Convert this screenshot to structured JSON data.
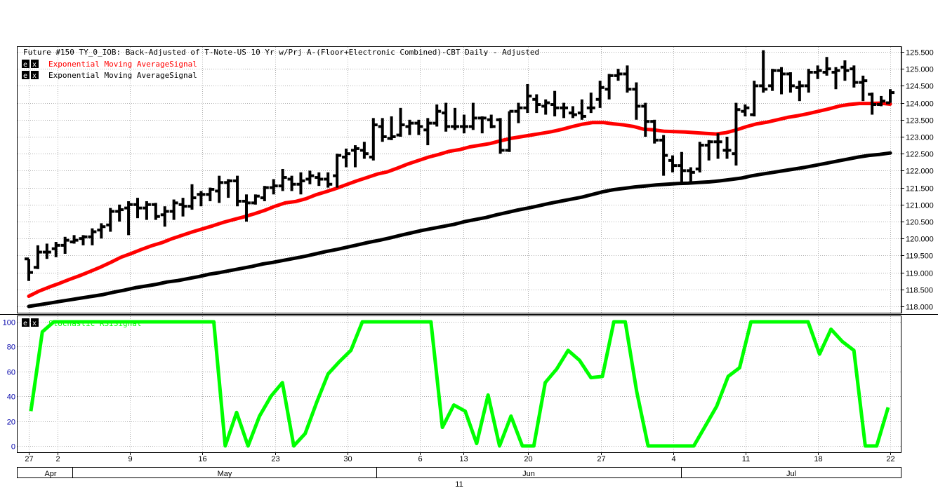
{
  "header": {
    "title": "Future #150 TY_0_IOB: Back-Adjusted of T-Note-US 10 Yr w/Prj A-(Floor+Electronic Combined)-CBT Daily -  Adjusted",
    "legend": [
      {
        "e": "e",
        "x": "x",
        "label": "Exponential Moving AverageSignal",
        "color": "#ff0000"
      },
      {
        "e": "e",
        "x": "x",
        "label": "Exponential Moving AverageSignal",
        "color": "#000000"
      }
    ],
    "lower_legend": {
      "e": "e",
      "x": "x",
      "label": "Stochastic RSISignal",
      "color": "#00ff00"
    }
  },
  "colors": {
    "bars": "#000000",
    "ema_fast": "#ff0000",
    "ema_slow": "#000000",
    "stoch": "#00ff00",
    "grid": "#b0b0b0",
    "axis_text_lower": "#0000aa"
  },
  "chart_data": [
    {
      "type": "ohlc",
      "ylim": [
        117.8,
        125.6
      ],
      "yticks": [
        "125.500",
        "125.000",
        "124.500",
        "124.000",
        "123.500",
        "123.000",
        "122.500",
        "122.000",
        "121.500",
        "121.000",
        "120.500",
        "120.000",
        "119.500",
        "119.000",
        "118.500",
        "118.000"
      ],
      "grid": true,
      "bars": [
        {
          "o": 119.4,
          "h": 119.4,
          "l": 118.75,
          "c": 119.0
        },
        {
          "o": 119.15,
          "h": 119.8,
          "l": 119.1,
          "c": 119.6
        },
        {
          "o": 119.6,
          "h": 119.85,
          "l": 119.4,
          "c": 119.6
        },
        {
          "o": 119.7,
          "h": 119.9,
          "l": 119.45,
          "c": 119.8
        },
        {
          "o": 119.8,
          "h": 120.05,
          "l": 119.55,
          "c": 119.95
        },
        {
          "o": 119.9,
          "h": 120.1,
          "l": 119.85,
          "c": 119.95
        },
        {
          "o": 120.0,
          "h": 120.1,
          "l": 119.8,
          "c": 120.05
        },
        {
          "o": 120.05,
          "h": 120.3,
          "l": 119.8,
          "c": 120.2
        },
        {
          "o": 120.25,
          "h": 120.45,
          "l": 120.0,
          "c": 120.35
        },
        {
          "o": 120.4,
          "h": 120.9,
          "l": 120.2,
          "c": 120.8
        },
        {
          "o": 120.8,
          "h": 121.0,
          "l": 120.5,
          "c": 120.85
        },
        {
          "o": 120.9,
          "h": 121.1,
          "l": 120.1,
          "c": 121.0
        },
        {
          "o": 121.0,
          "h": 121.2,
          "l": 120.6,
          "c": 120.9
        },
        {
          "o": 120.9,
          "h": 121.1,
          "l": 120.55,
          "c": 121.0
        },
        {
          "o": 121.0,
          "h": 121.05,
          "l": 120.55,
          "c": 120.65
        },
        {
          "o": 120.7,
          "h": 120.95,
          "l": 120.35,
          "c": 120.8
        },
        {
          "o": 120.8,
          "h": 121.15,
          "l": 120.55,
          "c": 121.05
        },
        {
          "o": 121.0,
          "h": 121.2,
          "l": 120.65,
          "c": 120.95
        },
        {
          "o": 120.95,
          "h": 121.6,
          "l": 120.85,
          "c": 121.2
        },
        {
          "o": 121.3,
          "h": 121.4,
          "l": 120.95,
          "c": 121.3
        },
        {
          "o": 121.3,
          "h": 121.5,
          "l": 121.1,
          "c": 121.45
        },
        {
          "o": 121.4,
          "h": 121.85,
          "l": 121.05,
          "c": 121.65
        },
        {
          "o": 121.65,
          "h": 121.75,
          "l": 121.2,
          "c": 121.7
        },
        {
          "o": 121.7,
          "h": 121.85,
          "l": 120.95,
          "c": 121.1
        },
        {
          "o": 121.1,
          "h": 121.3,
          "l": 120.5,
          "c": 121.05
        },
        {
          "o": 121.05,
          "h": 121.3,
          "l": 121.0,
          "c": 121.25
        },
        {
          "o": 121.2,
          "h": 121.55,
          "l": 121.1,
          "c": 121.5
        },
        {
          "o": 121.5,
          "h": 121.75,
          "l": 121.3,
          "c": 121.55
        },
        {
          "o": 121.55,
          "h": 122.05,
          "l": 121.4,
          "c": 121.8
        },
        {
          "o": 121.75,
          "h": 121.85,
          "l": 121.4,
          "c": 121.6
        },
        {
          "o": 121.6,
          "h": 121.95,
          "l": 121.3,
          "c": 121.7
        },
        {
          "o": 121.75,
          "h": 122.0,
          "l": 121.6,
          "c": 121.85
        },
        {
          "o": 121.8,
          "h": 121.95,
          "l": 121.55,
          "c": 121.75
        },
        {
          "o": 121.75,
          "h": 121.95,
          "l": 121.5,
          "c": 121.6
        },
        {
          "o": 121.85,
          "h": 122.5,
          "l": 121.5,
          "c": 122.45
        },
        {
          "o": 122.4,
          "h": 122.65,
          "l": 122.1,
          "c": 122.5
        },
        {
          "o": 122.6,
          "h": 122.75,
          "l": 122.1,
          "c": 122.65
        },
        {
          "o": 122.6,
          "h": 122.85,
          "l": 122.35,
          "c": 122.5
        },
        {
          "o": 122.4,
          "h": 123.55,
          "l": 122.3,
          "c": 123.35
        },
        {
          "o": 123.3,
          "h": 123.55,
          "l": 122.85,
          "c": 123.0
        },
        {
          "o": 122.95,
          "h": 123.6,
          "l": 122.9,
          "c": 123.0
        },
        {
          "o": 123.05,
          "h": 123.85,
          "l": 123.0,
          "c": 123.35
        },
        {
          "o": 123.3,
          "h": 123.5,
          "l": 123.05,
          "c": 123.4
        },
        {
          "o": 123.4,
          "h": 123.5,
          "l": 123.05,
          "c": 123.3
        },
        {
          "o": 123.2,
          "h": 123.55,
          "l": 122.75,
          "c": 123.4
        },
        {
          "o": 123.4,
          "h": 123.95,
          "l": 123.3,
          "c": 123.75
        },
        {
          "o": 123.7,
          "h": 124.0,
          "l": 123.15,
          "c": 123.3
        },
        {
          "o": 123.3,
          "h": 123.85,
          "l": 123.2,
          "c": 123.3
        },
        {
          "o": 123.3,
          "h": 123.65,
          "l": 123.1,
          "c": 123.3
        },
        {
          "o": 123.3,
          "h": 124.0,
          "l": 123.2,
          "c": 123.55
        },
        {
          "o": 123.55,
          "h": 123.6,
          "l": 123.1,
          "c": 123.55
        },
        {
          "o": 123.5,
          "h": 123.65,
          "l": 123.25,
          "c": 123.3
        },
        {
          "o": 123.5,
          "h": 123.55,
          "l": 122.5,
          "c": 122.6
        },
        {
          "o": 122.6,
          "h": 123.75,
          "l": 122.55,
          "c": 123.75
        },
        {
          "o": 123.75,
          "h": 124.0,
          "l": 123.4,
          "c": 123.85
        },
        {
          "o": 123.85,
          "h": 124.55,
          "l": 123.7,
          "c": 124.2
        },
        {
          "o": 124.1,
          "h": 124.25,
          "l": 123.7,
          "c": 123.95
        },
        {
          "o": 123.9,
          "h": 124.1,
          "l": 123.65,
          "c": 124.0
        },
        {
          "o": 123.95,
          "h": 124.35,
          "l": 123.6,
          "c": 123.85
        },
        {
          "o": 123.85,
          "h": 124.0,
          "l": 123.55,
          "c": 123.85
        },
        {
          "o": 123.7,
          "h": 123.9,
          "l": 123.55,
          "c": 123.65
        },
        {
          "o": 123.7,
          "h": 124.1,
          "l": 123.5,
          "c": 123.6
        },
        {
          "o": 123.85,
          "h": 124.3,
          "l": 123.7,
          "c": 123.85
        },
        {
          "o": 124.1,
          "h": 124.65,
          "l": 123.85,
          "c": 124.45
        },
        {
          "o": 124.4,
          "h": 124.85,
          "l": 124.1,
          "c": 124.8
        },
        {
          "o": 124.8,
          "h": 125.0,
          "l": 124.65,
          "c": 124.85
        },
        {
          "o": 124.85,
          "h": 125.1,
          "l": 124.3,
          "c": 124.4
        },
        {
          "o": 124.4,
          "h": 124.6,
          "l": 123.5,
          "c": 123.9
        },
        {
          "o": 123.9,
          "h": 124.0,
          "l": 123.0,
          "c": 123.45
        },
        {
          "o": 123.45,
          "h": 123.5,
          "l": 122.8,
          "c": 122.9
        },
        {
          "o": 122.9,
          "h": 123.05,
          "l": 121.85,
          "c": 122.45
        },
        {
          "o": 122.3,
          "h": 122.45,
          "l": 121.95,
          "c": 122.15
        },
        {
          "o": 122.15,
          "h": 122.55,
          "l": 121.6,
          "c": 122.0
        },
        {
          "o": 122.0,
          "h": 122.1,
          "l": 121.6,
          "c": 121.95
        },
        {
          "o": 122.05,
          "h": 122.85,
          "l": 121.95,
          "c": 122.75
        },
        {
          "o": 122.75,
          "h": 122.9,
          "l": 122.3,
          "c": 122.85
        },
        {
          "o": 122.85,
          "h": 123.1,
          "l": 122.35,
          "c": 122.85
        },
        {
          "o": 122.6,
          "h": 123.0,
          "l": 122.35,
          "c": 122.6
        },
        {
          "o": 122.5,
          "h": 124.0,
          "l": 122.15,
          "c": 123.8
        },
        {
          "o": 123.75,
          "h": 123.95,
          "l": 123.6,
          "c": 123.85
        },
        {
          "o": 123.65,
          "h": 124.65,
          "l": 123.6,
          "c": 124.5
        },
        {
          "o": 124.5,
          "h": 125.55,
          "l": 124.3,
          "c": 124.4
        },
        {
          "o": 124.5,
          "h": 125.0,
          "l": 124.35,
          "c": 124.95
        },
        {
          "o": 124.95,
          "h": 125.05,
          "l": 124.25,
          "c": 124.85
        },
        {
          "o": 124.85,
          "h": 124.9,
          "l": 124.3,
          "c": 124.5
        },
        {
          "o": 124.45,
          "h": 124.65,
          "l": 124.05,
          "c": 124.5
        },
        {
          "o": 124.5,
          "h": 125.0,
          "l": 124.3,
          "c": 124.9
        },
        {
          "o": 124.9,
          "h": 125.1,
          "l": 124.7,
          "c": 124.95
        },
        {
          "o": 124.9,
          "h": 125.35,
          "l": 124.8,
          "c": 125.0
        },
        {
          "o": 124.9,
          "h": 125.05,
          "l": 124.4,
          "c": 124.95
        },
        {
          "o": 125.05,
          "h": 125.25,
          "l": 124.65,
          "c": 124.95
        },
        {
          "o": 125.0,
          "h": 125.1,
          "l": 124.45,
          "c": 124.6
        },
        {
          "o": 124.6,
          "h": 124.8,
          "l": 124.05,
          "c": 124.65
        },
        {
          "o": 124.25,
          "h": 124.3,
          "l": 123.65,
          "c": 123.95
        },
        {
          "o": 123.95,
          "h": 124.2,
          "l": 123.9,
          "c": 124.05
        },
        {
          "o": 124.0,
          "h": 124.4,
          "l": 124.0,
          "c": 124.3
        }
      ],
      "ema_fast": [
        118.3,
        118.45,
        118.57,
        118.68,
        118.8,
        118.91,
        119.03,
        119.16,
        119.3,
        119.45,
        119.56,
        119.68,
        119.79,
        119.88,
        120.0,
        120.1,
        120.2,
        120.29,
        120.38,
        120.48,
        120.56,
        120.64,
        120.73,
        120.83,
        120.95,
        121.05,
        121.09,
        121.17,
        121.29,
        121.38,
        121.48,
        121.59,
        121.7,
        121.8,
        121.9,
        121.97,
        122.08,
        122.2,
        122.3,
        122.4,
        122.48,
        122.57,
        122.62,
        122.7,
        122.75,
        122.8,
        122.88,
        122.95,
        123.0,
        123.05,
        123.1,
        123.15,
        123.22,
        123.3,
        123.37,
        123.42,
        123.42,
        123.38,
        123.35,
        123.3,
        123.22,
        123.2,
        123.16,
        123.15,
        123.14,
        123.12,
        123.1,
        123.08,
        123.12,
        123.2,
        123.3,
        123.38,
        123.43,
        123.5,
        123.57,
        123.62,
        123.68,
        123.75,
        123.82,
        123.9,
        123.95,
        123.98,
        123.98,
        123.99,
        123.96
      ],
      "ema_slow": [
        118.0,
        118.05,
        118.1,
        118.15,
        118.2,
        118.25,
        118.3,
        118.35,
        118.42,
        118.48,
        118.55,
        118.6,
        118.65,
        118.72,
        118.76,
        118.82,
        118.88,
        118.95,
        119.0,
        119.06,
        119.12,
        119.18,
        119.25,
        119.3,
        119.36,
        119.42,
        119.48,
        119.55,
        119.62,
        119.68,
        119.75,
        119.82,
        119.89,
        119.95,
        120.02,
        120.1,
        120.17,
        120.24,
        120.3,
        120.36,
        120.42,
        120.5,
        120.56,
        120.62,
        120.7,
        120.77,
        120.84,
        120.9,
        120.97,
        121.04,
        121.1,
        121.16,
        121.22,
        121.3,
        121.38,
        121.44,
        121.48,
        121.52,
        121.55,
        121.58,
        121.6,
        121.62,
        121.63,
        121.65,
        121.67,
        121.7,
        121.74,
        121.78,
        121.85,
        121.9,
        121.95,
        122.0,
        122.05,
        122.1,
        122.16,
        122.22,
        122.28,
        122.34,
        122.4,
        122.45,
        122.48,
        122.52
      ],
      "xtick_labels": [
        {
          "bar": 0,
          "label": "27"
        },
        {
          "bar": 4,
          "label": "2"
        },
        {
          "bar": 14,
          "label": "9"
        },
        {
          "bar": 24,
          "label": "16"
        },
        {
          "bar": 34,
          "label": "23"
        },
        {
          "bar": 44,
          "label": "30"
        },
        {
          "bar": 54,
          "label": "6"
        },
        {
          "bar": 60,
          "label": "13"
        },
        {
          "bar": 69,
          "label": "20"
        },
        {
          "bar": 79,
          "label": "27"
        },
        {
          "bar": 89,
          "label": "4"
        },
        {
          "bar": 99,
          "label": "11"
        },
        {
          "bar": 109,
          "label": "18"
        },
        {
          "bar": 119,
          "label": "22"
        }
      ],
      "month_labels": [
        "Apr",
        "May",
        "Jun",
        "Jul"
      ],
      "year_label": "11"
    },
    {
      "type": "line",
      "name": "Stochastic RSISignal",
      "ylim": [
        0,
        100
      ],
      "yticks": [
        "100",
        "80",
        "60",
        "40",
        "20",
        "0"
      ],
      "values": [
        28,
        92,
        100,
        100,
        100,
        100,
        100,
        100,
        100,
        100,
        100,
        100,
        100,
        100,
        100,
        100,
        100,
        0,
        27,
        0,
        24,
        40,
        51,
        0,
        10,
        35,
        58,
        68,
        77,
        100,
        100,
        100,
        100,
        100,
        100,
        100,
        15,
        33,
        28,
        2,
        41,
        0,
        24,
        0,
        0,
        51,
        62,
        77,
        69,
        55,
        56,
        100,
        100,
        44,
        0,
        0,
        0,
        0,
        0,
        16,
        32,
        56,
        63,
        100,
        100,
        100,
        100,
        100,
        100,
        74,
        94,
        84,
        77,
        0,
        0,
        31
      ]
    }
  ]
}
